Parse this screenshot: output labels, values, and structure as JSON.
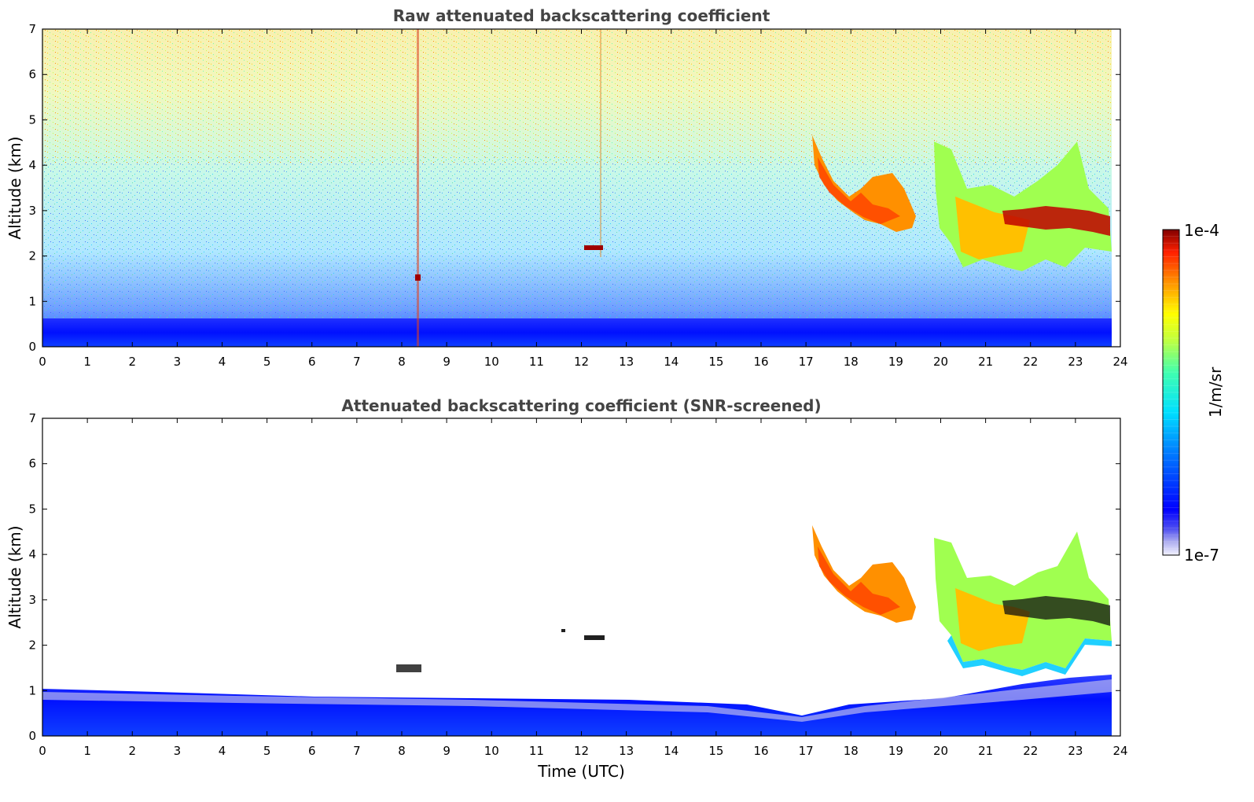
{
  "panels": [
    {
      "title": "Raw attenuated backscattering coefficient",
      "ylabel": "Altitude (km)",
      "xlabel": "",
      "xticks": [
        "0",
        "1",
        "2",
        "3",
        "4",
        "5",
        "6",
        "7",
        "8",
        "9",
        "10",
        "11",
        "12",
        "13",
        "14",
        "15",
        "16",
        "17",
        "18",
        "19",
        "20",
        "21",
        "22",
        "23",
        "24"
      ],
      "yticks": [
        "0",
        "1",
        "2",
        "3",
        "4",
        "5",
        "6",
        "7"
      ]
    },
    {
      "title": "Attenuated backscattering coefficient (SNR-screened)",
      "ylabel": "Altitude (km)",
      "xlabel": "Time (UTC)",
      "xticks": [
        "0",
        "1",
        "2",
        "3",
        "4",
        "5",
        "6",
        "7",
        "8",
        "9",
        "10",
        "11",
        "12",
        "13",
        "14",
        "15",
        "16",
        "17",
        "18",
        "19",
        "20",
        "21",
        "22",
        "23",
        "24"
      ],
      "yticks": [
        "0",
        "1",
        "2",
        "3",
        "4",
        "5",
        "6",
        "7"
      ]
    }
  ],
  "colorbar": {
    "max_label": "1e-4",
    "min_label": "1e-7",
    "label": "1/m/sr",
    "colormap": "jet",
    "scale": "log"
  },
  "chart_data": [
    {
      "type": "heatmap",
      "title": "Raw attenuated backscattering coefficient",
      "xlabel": "",
      "ylabel": "Altitude (km)",
      "xlim": [
        0,
        24
      ],
      "ylim": [
        0,
        7
      ],
      "data_end_time": 23.8,
      "color_scale": {
        "min": 1e-07,
        "max": 0.0001,
        "scale": "log",
        "colormap": "jet",
        "unit": "1/m/sr"
      },
      "features": [
        {
          "feature": "boundary_layer",
          "time": [
            0,
            23.8
          ],
          "altitude": [
            0,
            0.5
          ]
        },
        {
          "feature": "cloud_layer",
          "time": [
            17.2,
            19.4
          ],
          "altitude_top": [
            4.5,
            3.2
          ],
          "altitude_base": [
            3.8,
            2.6
          ]
        },
        {
          "feature": "cloud_layer",
          "time": [
            19.8,
            23.8
          ],
          "altitude": [
            1.6,
            4.2
          ]
        },
        {
          "feature": "dense_layer",
          "time": [
            21.4,
            23.8
          ],
          "altitude": [
            2.4,
            3.0
          ]
        },
        {
          "feature": "isolated_echo",
          "time": [
            12.0,
            12.5
          ],
          "altitude": 2.15
        },
        {
          "feature": "isolated_echo",
          "time": [
            8.3,
            8.4
          ],
          "altitude": 1.5
        }
      ]
    },
    {
      "type": "heatmap",
      "title": "Attenuated backscattering coefficient (SNR-screened)",
      "xlabel": "Time (UTC)",
      "ylabel": "Altitude (km)",
      "xlim": [
        0,
        24
      ],
      "ylim": [
        0,
        7
      ],
      "data_end_time": 23.8,
      "color_scale": {
        "min": 1e-07,
        "max": 0.0001,
        "scale": "log",
        "colormap": "jet",
        "unit": "1/m/sr"
      },
      "features": [
        {
          "feature": "boundary_layer",
          "time": [
            0,
            23.8
          ],
          "altitude": [
            0,
            1.2
          ]
        },
        {
          "feature": "cloud_layer",
          "time": [
            17.2,
            19.4
          ],
          "altitude_top": [
            4.6,
            3.2
          ],
          "altitude_base": [
            3.8,
            2.6
          ]
        },
        {
          "feature": "cloud_layer",
          "time": [
            19.8,
            23.8
          ],
          "altitude": [
            1.4,
            4.4
          ]
        },
        {
          "feature": "dense_layer",
          "time": [
            21.4,
            23.8
          ],
          "altitude": [
            2.4,
            3.0
          ]
        },
        {
          "feature": "isolated_echo",
          "time": [
            11.5,
            12.5
          ],
          "altitude": 2.2
        },
        {
          "feature": "isolated_echo",
          "time": [
            7.8,
            8.4
          ],
          "altitude": 1.5
        }
      ]
    }
  ]
}
